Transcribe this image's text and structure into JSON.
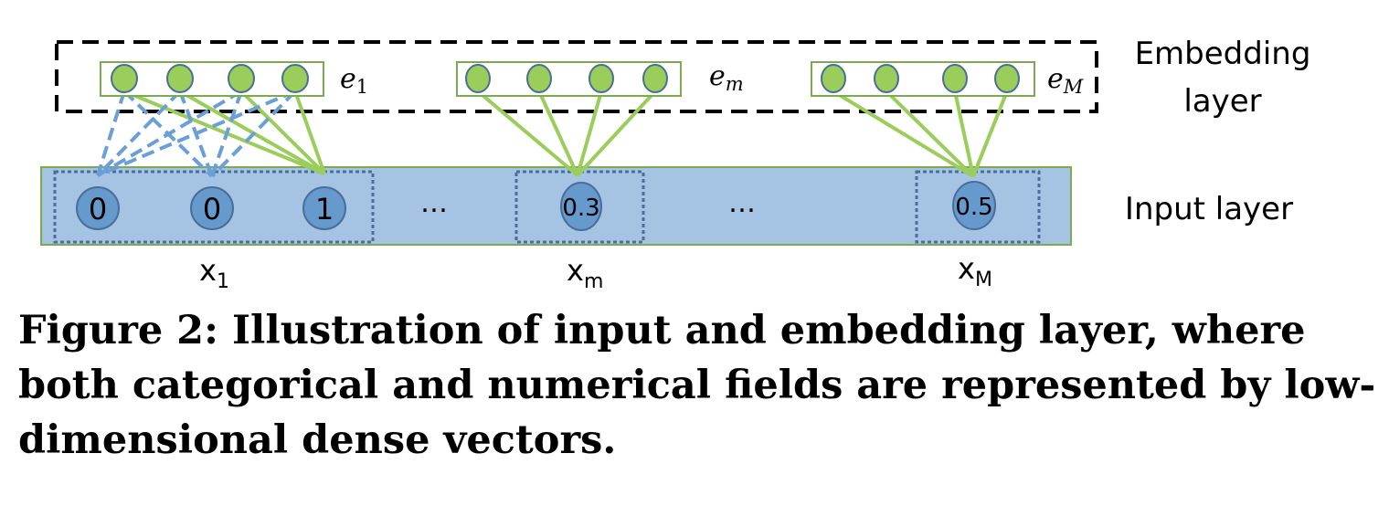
{
  "embedding": {
    "label_line1": "Embedding",
    "label_line2": "layer",
    "vectors": [
      {
        "name": "e",
        "sub": "1"
      },
      {
        "name": "e",
        "sub": "m"
      },
      {
        "name": "e",
        "sub": "M"
      }
    ]
  },
  "input": {
    "label": "Input layer",
    "values": [
      "0",
      "0",
      "1",
      "0.3",
      "0.5"
    ],
    "ellipsis": "…",
    "fields": [
      {
        "name": "x",
        "sub": "1"
      },
      {
        "name": "x",
        "sub": "m"
      },
      {
        "name": "x",
        "sub": "M"
      }
    ]
  },
  "colors": {
    "green": "#9acd5a",
    "green_stroke": "#7aab4e",
    "blue_fill": "#a5c3e2",
    "node_blue": "#6699cc",
    "dash_blue": "#6a9fd8"
  },
  "caption": "Figure 2: Illustration of input and embedding layer, where both categorical and numerical fields are represented by low-dimensional dense vectors."
}
